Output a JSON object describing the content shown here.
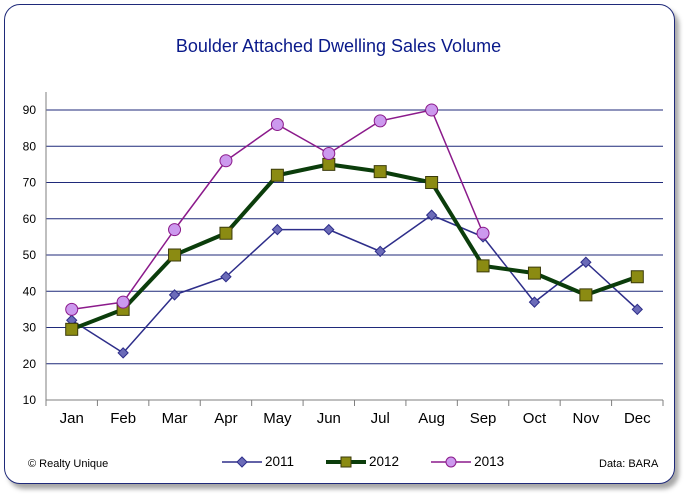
{
  "title": "Boulder Attached Dwelling Sales Volume",
  "footer": {
    "left": "© Realty Unique",
    "right": "Data: BARA"
  },
  "colors": {
    "frame": "#1f2a7a",
    "title": "#0a1a8a",
    "grid": "#1f2a7a",
    "axis": "#7f7f7f"
  },
  "chart_data": {
    "type": "line",
    "categories": [
      "Jan",
      "Feb",
      "Mar",
      "Apr",
      "May",
      "Jun",
      "Jul",
      "Aug",
      "Sep",
      "Oct",
      "Nov",
      "Dec"
    ],
    "ylim": [
      10,
      90
    ],
    "yticks": [
      10,
      20,
      30,
      40,
      50,
      60,
      70,
      80,
      90
    ],
    "grid": true,
    "legend_position": "bottom",
    "series": [
      {
        "name": "2011",
        "color": "#2e2e8a",
        "fill": "#6b6bb8",
        "marker": "diamond",
        "values": [
          32,
          23,
          39,
          44,
          57,
          57,
          51,
          61,
          55,
          37,
          48,
          35
        ]
      },
      {
        "name": "2012",
        "color": "#0b3d0b",
        "fill": "#8b8b12",
        "marker": "square",
        "values": [
          29.5,
          35,
          50,
          56,
          72,
          75,
          73,
          70,
          47,
          45,
          39,
          44
        ]
      },
      {
        "name": "2013",
        "color": "#8b1a8b",
        "fill": "#cc99ee",
        "marker": "circle",
        "values": [
          35,
          37,
          57,
          76,
          86,
          78,
          87,
          90,
          56,
          null,
          null,
          null
        ]
      }
    ]
  }
}
